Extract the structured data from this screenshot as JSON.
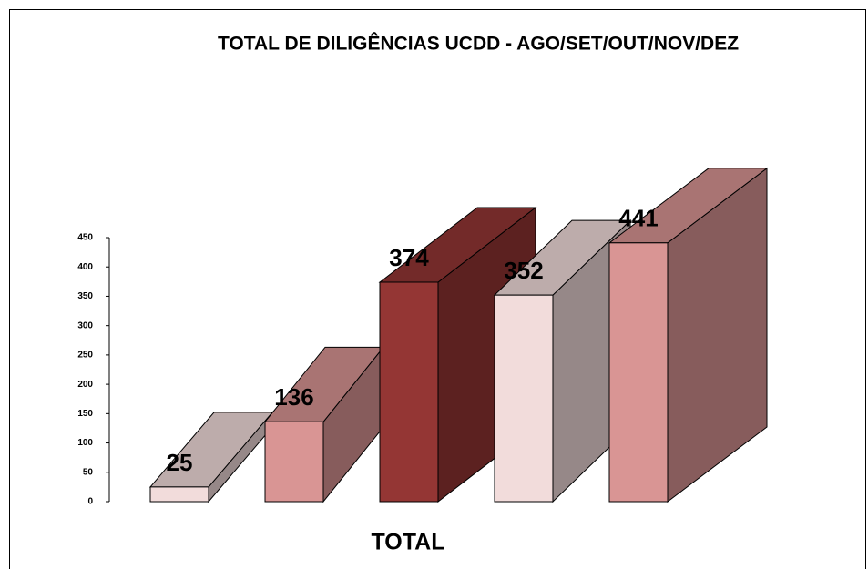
{
  "chart_data": {
    "type": "bar3d",
    "title": "TOTAL DE DILIGÊNCIAS UCDD - AGO/SET/OUT/NOV/DEZ",
    "x_label": "TOTAL",
    "categories": [
      null,
      null,
      null,
      null,
      null
    ],
    "values": [
      25,
      136,
      374,
      352,
      441
    ],
    "colors": [
      "#f2dcdb",
      "#d99594",
      "#943634",
      "#f2dcdb",
      "#d99594"
    ],
    "ylim": [
      0,
      450
    ],
    "yticks": [
      0,
      50,
      100,
      150,
      200,
      250,
      300,
      350,
      400,
      450
    ],
    "grid": false
  }
}
